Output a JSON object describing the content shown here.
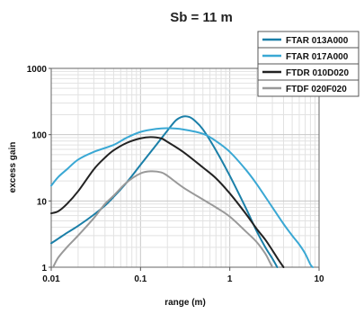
{
  "chart_data": {
    "type": "line",
    "title": "Sb = 11 m",
    "xlabel": "range (m)",
    "ylabel": "excess gain",
    "x_scale": "log",
    "y_scale": "log",
    "xlim": [
      0.01,
      10
    ],
    "ylim": [
      1,
      1000
    ],
    "x_ticks": [
      {
        "value": 0.01,
        "label": "0.01"
      },
      {
        "value": 0.1,
        "label": "0.1"
      },
      {
        "value": 1,
        "label": "1"
      },
      {
        "value": 10,
        "label": "10"
      }
    ],
    "y_ticks": [
      {
        "value": 1,
        "label": "1"
      },
      {
        "value": 10,
        "label": "10"
      },
      {
        "value": 100,
        "label": "100"
      },
      {
        "value": 1000,
        "label": "1000"
      }
    ],
    "grid": true,
    "legend_position": "top-right",
    "series": [
      {
        "name": "FTAR 013A000",
        "color": "#1a7fa8",
        "points": [
          [
            0.01,
            2.3
          ],
          [
            0.012,
            2.7
          ],
          [
            0.015,
            3.3
          ],
          [
            0.02,
            4.2
          ],
          [
            0.03,
            6.2
          ],
          [
            0.04,
            8.5
          ],
          [
            0.05,
            11.5
          ],
          [
            0.07,
            19
          ],
          [
            0.1,
            35
          ],
          [
            0.15,
            70
          ],
          [
            0.2,
            115
          ],
          [
            0.25,
            165
          ],
          [
            0.3,
            188
          ],
          [
            0.35,
            185
          ],
          [
            0.4,
            165
          ],
          [
            0.5,
            120
          ],
          [
            0.7,
            58
          ],
          [
            1.0,
            24
          ],
          [
            1.5,
            8
          ],
          [
            2.0,
            3.5
          ],
          [
            2.5,
            2.0
          ],
          [
            3.0,
            1.35
          ],
          [
            3.4,
            1.0
          ]
        ]
      },
      {
        "name": "FTAR 017A000",
        "color": "#3aa8d4",
        "points": [
          [
            0.01,
            17
          ],
          [
            0.012,
            23
          ],
          [
            0.015,
            30
          ],
          [
            0.02,
            42
          ],
          [
            0.03,
            55
          ],
          [
            0.05,
            70
          ],
          [
            0.07,
            90
          ],
          [
            0.1,
            110
          ],
          [
            0.15,
            122
          ],
          [
            0.2,
            125
          ],
          [
            0.3,
            120
          ],
          [
            0.5,
            103
          ],
          [
            0.7,
            80
          ],
          [
            1.0,
            55
          ],
          [
            1.5,
            30
          ],
          [
            2.0,
            18
          ],
          [
            3.0,
            8
          ],
          [
            4.0,
            4.5
          ],
          [
            5.0,
            3.0
          ],
          [
            6.0,
            2.2
          ],
          [
            7.0,
            1.6
          ],
          [
            8.0,
            1.1
          ],
          [
            8.5,
            1.0
          ]
        ]
      },
      {
        "name": "FTDR 010D020",
        "color": "#222222",
        "points": [
          [
            0.01,
            6.5
          ],
          [
            0.012,
            7.0
          ],
          [
            0.015,
            9
          ],
          [
            0.02,
            14
          ],
          [
            0.03,
            30
          ],
          [
            0.04,
            45
          ],
          [
            0.05,
            58
          ],
          [
            0.07,
            75
          ],
          [
            0.1,
            88
          ],
          [
            0.13,
            92
          ],
          [
            0.17,
            88
          ],
          [
            0.2,
            78
          ],
          [
            0.3,
            55
          ],
          [
            0.5,
            32
          ],
          [
            0.7,
            22
          ],
          [
            1.0,
            13
          ],
          [
            1.5,
            6.5
          ],
          [
            2.0,
            3.8
          ],
          [
            2.5,
            2.6
          ],
          [
            3.0,
            1.8
          ],
          [
            3.5,
            1.3
          ],
          [
            4.0,
            1.0
          ]
        ]
      },
      {
        "name": "FTDF 020F020",
        "color": "#999999",
        "points": [
          [
            0.0105,
            1.0
          ],
          [
            0.012,
            1.4
          ],
          [
            0.015,
            2.0
          ],
          [
            0.02,
            3.0
          ],
          [
            0.03,
            5.5
          ],
          [
            0.04,
            9
          ],
          [
            0.05,
            12
          ],
          [
            0.07,
            19
          ],
          [
            0.1,
            26
          ],
          [
            0.13,
            28
          ],
          [
            0.17,
            27
          ],
          [
            0.2,
            24
          ],
          [
            0.3,
            16
          ],
          [
            0.5,
            10.5
          ],
          [
            0.7,
            8.0
          ],
          [
            1.0,
            5.8
          ],
          [
            1.5,
            3.5
          ],
          [
            2.0,
            2.4
          ],
          [
            2.5,
            1.6
          ],
          [
            2.8,
            1.2
          ],
          [
            3.0,
            1.0
          ]
        ]
      }
    ]
  }
}
